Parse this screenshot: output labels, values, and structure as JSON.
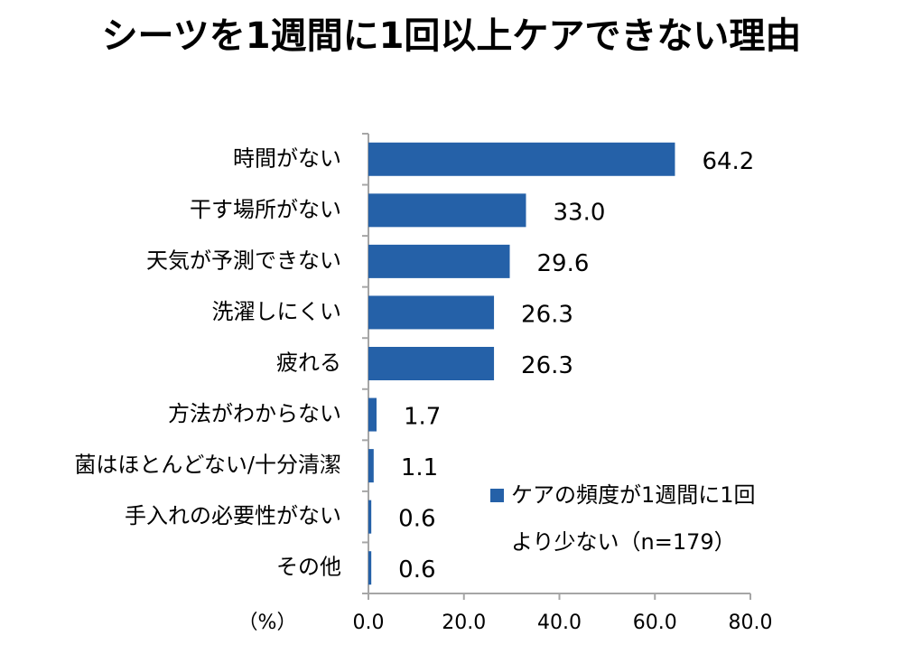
{
  "chart_data": {
    "type": "hbar",
    "title": "シーツを1週間に1回以上ケアできない理由",
    "xlabel": "（%）",
    "categories": [
      "時間がない",
      "干す場所がない",
      "天気が予測できない",
      "洗濯しにくい",
      "疲れる",
      "方法がわからない",
      "菌はほとんどない/十分清潔",
      "手入れの必要性がない",
      "その他"
    ],
    "series": [
      {
        "name": "ケアの頻度が1週間に1回より少ない（n=179）",
        "color": "#2561a8",
        "values": [
          64.2,
          33.0,
          29.6,
          26.3,
          26.3,
          1.7,
          1.1,
          0.6,
          0.6
        ],
        "value_labels": [
          "64.2",
          "33.0",
          "29.6",
          "26.3",
          "26.3",
          "1.7",
          "1.1",
          "0.6",
          "0.6"
        ]
      }
    ],
    "xlim": [
      0,
      80
    ],
    "xticks": [
      {
        "value": 0,
        "label": "0.0"
      },
      {
        "value": 20,
        "label": "20.0"
      },
      {
        "value": 40,
        "label": "40.0"
      },
      {
        "value": 60,
        "label": "60.0"
      },
      {
        "value": 80,
        "label": "80.0"
      }
    ],
    "grid": false,
    "legend": "right"
  }
}
